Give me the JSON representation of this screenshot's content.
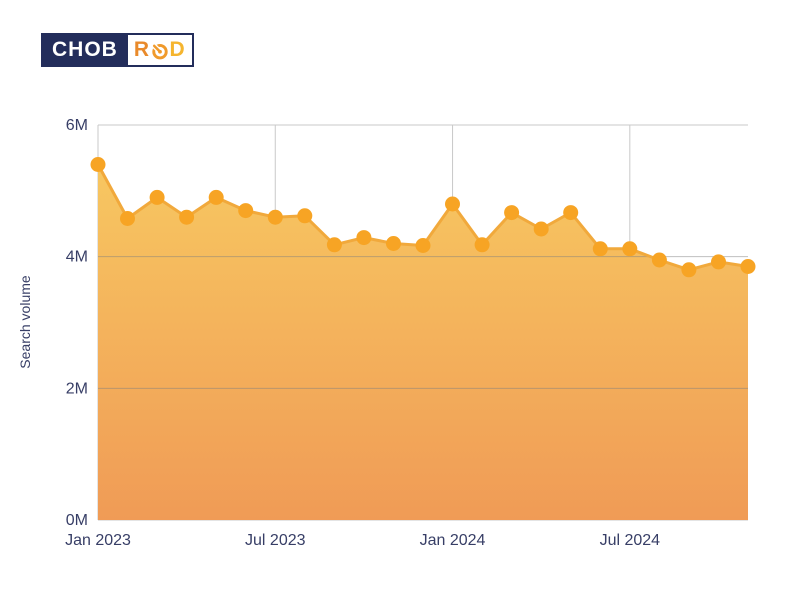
{
  "logo": {
    "brand_left": "CHOB",
    "brand_right_r": "R",
    "brand_right_d": "D",
    "brand_full_name": "CHOB ROD",
    "navy": "#232D5B",
    "left_text_color": "#FFFFFF",
    "r_color": "#E98A2B",
    "o_color": "#F09A2B",
    "d_color": "#F5B52F"
  },
  "chart_data": {
    "type": "area",
    "title": "",
    "ylabel": "Search volume",
    "xlabel": "",
    "unit": "M",
    "ylim": [
      0,
      6
    ],
    "grid": true,
    "legend_position": "none",
    "x": [
      "Jan 2023",
      "Feb 2023",
      "Mar 2023",
      "Apr 2023",
      "May 2023",
      "Jun 2023",
      "Jul 2023",
      "Aug 2023",
      "Sep 2023",
      "Oct 2023",
      "Nov 2023",
      "Dec 2023",
      "Jan 2024",
      "Feb 2024",
      "Mar 2024",
      "Apr 2024",
      "May 2024",
      "Jun 2024",
      "Jul 2024",
      "Aug 2024",
      "Sep 2024",
      "Oct 2024",
      "Nov 2024"
    ],
    "values": [
      5.4,
      4.58,
      4.9,
      4.6,
      4.9,
      4.7,
      4.6,
      4.62,
      4.18,
      4.29,
      4.2,
      4.17,
      4.8,
      4.18,
      4.67,
      4.42,
      4.67,
      4.12,
      4.12,
      3.95,
      3.8,
      3.92,
      3.85
    ],
    "y_ticks": [
      {
        "label": "6M",
        "value": 6
      },
      {
        "label": "4M",
        "value": 4
      },
      {
        "label": "2M",
        "value": 2
      },
      {
        "label": "0M",
        "value": 0
      }
    ],
    "x_ticks": [
      {
        "label": "Jan 2023",
        "index": 0
      },
      {
        "label": "Jul 2023",
        "index": 6
      },
      {
        "label": "Jan 2024",
        "index": 12
      },
      {
        "label": "Jul 2024",
        "index": 18
      }
    ],
    "colors": {
      "marker": "#F7A424",
      "line": "#F1A93C",
      "fill_top": "#F8CC62",
      "fill_bottom": "#F09B56",
      "grid": "#C9C9C9",
      "grid_over_fill": "rgba(128,128,128,0.5)",
      "text": "#373E66"
    }
  }
}
